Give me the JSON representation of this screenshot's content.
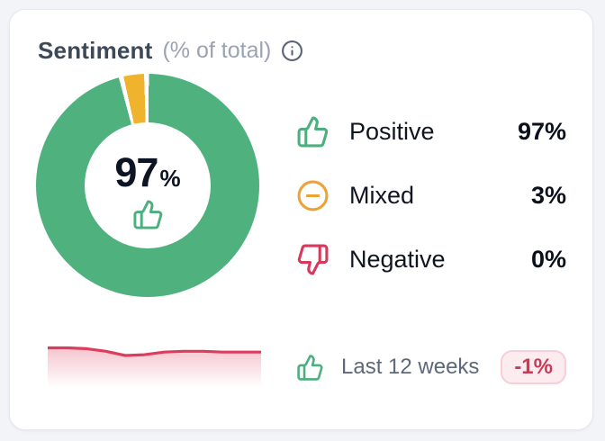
{
  "page": {
    "background": "#f2f4f8"
  },
  "card": {
    "header": {
      "title": "Sentiment",
      "subtitle": "(% of total)",
      "title_color": "#3d4859",
      "subtitle_color": "#9aa3b3",
      "info_icon": "info-icon"
    },
    "footer": {
      "icon": "thumbs-up-icon",
      "icon_color": "#4caf7e",
      "period_label": "Last 12 weeks",
      "period_color": "#5d6878",
      "badge": {
        "text": "-1%",
        "text_color": "#c93a57",
        "bg": "#fdecef",
        "border_color": "#f6cfd7"
      }
    }
  },
  "chart_data": [
    {
      "type": "pie",
      "subtype": "donut",
      "title": "Sentiment (% of total)",
      "center_label": {
        "value": "97",
        "unit": "%",
        "icon": "thumbs-up-icon",
        "icon_color": "#4caf7e"
      },
      "segments": [
        {
          "label": "Positive",
          "value": 97,
          "display": "97%",
          "color": "#4fb27e",
          "icon": "thumbs-up-icon",
          "icon_color": "#4caf7e"
        },
        {
          "label": "Mixed",
          "value": 3,
          "display": "3%",
          "color": "#f0b32e",
          "icon": "circle-minus-icon",
          "icon_color": "#eca438"
        },
        {
          "label": "Negative",
          "value": 0,
          "display": "0%",
          "color": "#d6395b",
          "icon": "thumbs-down-icon",
          "icon_color": "#d6395b"
        }
      ],
      "draw_order": [
        1,
        0,
        2
      ],
      "start_angle_deg": -12.5,
      "gap_deg": 2.5,
      "legend_position": "right"
    },
    {
      "type": "area",
      "title": "Sentiment trend",
      "period": "Last 12 weeks",
      "change": "-1%",
      "values": [
        97.6,
        97.6,
        97.5,
        97.2,
        96.7,
        96.8,
        97.1,
        97.2,
        97.2,
        97.1,
        97.1,
        97.1
      ],
      "line_color": "#dd3d5c",
      "fill_top": "rgba(221,61,92,0.30)",
      "fill_bottom": "rgba(221,61,92,0)"
    }
  ]
}
